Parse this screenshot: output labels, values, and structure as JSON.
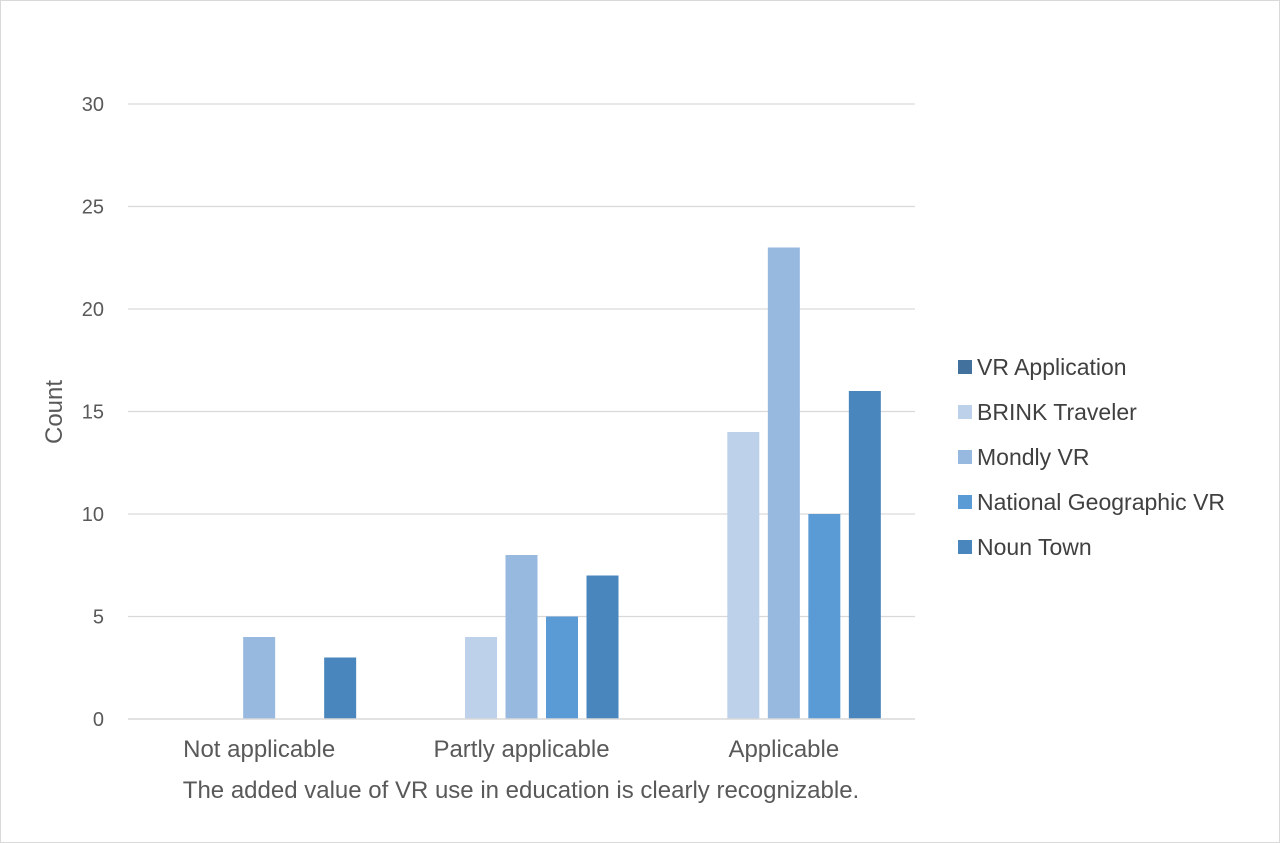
{
  "chart_data": {
    "type": "bar",
    "categories": [
      "Not applicable",
      "Partly applicable",
      "Applicable"
    ],
    "series": [
      {
        "name": "VR Application",
        "values": [
          0,
          0,
          0
        ],
        "color": "#41719c"
      },
      {
        "name": "BRINK Traveler",
        "values": [
          0,
          4,
          14
        ],
        "color": "#bdd1ea"
      },
      {
        "name": "Mondly VR",
        "values": [
          4,
          8,
          23
        ],
        "color": "#97b9e0"
      },
      {
        "name": "National Geographic VR",
        "values": [
          0,
          5,
          10
        ],
        "color": "#5b9bd5"
      },
      {
        "name": "Noun Town",
        "values": [
          3,
          7,
          16
        ],
        "color": "#4a86be"
      }
    ],
    "xlabel": "The added value of VR use in education is clearly recognizable.",
    "ylabel": "Count",
    "ylim": [
      0,
      30
    ],
    "yticks": [
      0,
      5,
      10,
      15,
      20,
      25,
      30
    ],
    "grid": true,
    "legend_position": "right"
  }
}
